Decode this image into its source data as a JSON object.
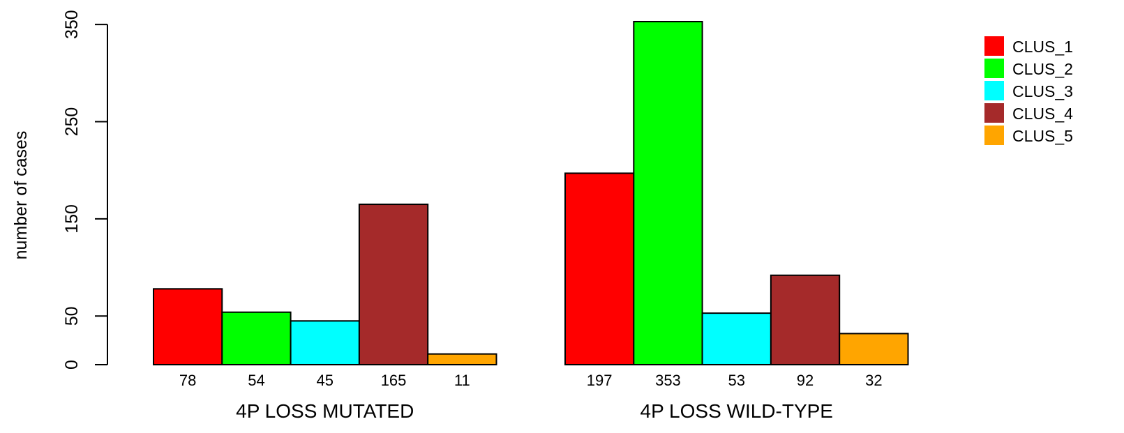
{
  "chart_data": {
    "type": "bar",
    "title": "",
    "xlabel": "",
    "ylabel": "number of cases",
    "ylim": [
      0,
      353
    ],
    "yticks": [
      0,
      50,
      150,
      250,
      350
    ],
    "categories": [
      "4P LOSS MUTATED",
      "4P LOSS WILD-TYPE"
    ],
    "series": [
      {
        "name": "CLUS_1",
        "color": "#ff0000",
        "values": [
          78,
          197
        ]
      },
      {
        "name": "CLUS_2",
        "color": "#00ff00",
        "values": [
          54,
          353
        ]
      },
      {
        "name": "CLUS_3",
        "color": "#00ffff",
        "values": [
          45,
          53
        ]
      },
      {
        "name": "CLUS_4",
        "color": "#a52a2a",
        "values": [
          165,
          92
        ]
      },
      {
        "name": "CLUS_5",
        "color": "#ffa500",
        "values": [
          11,
          32
        ]
      }
    ],
    "bar_value_labels": true,
    "legend_position": "top-right",
    "grid": false
  }
}
